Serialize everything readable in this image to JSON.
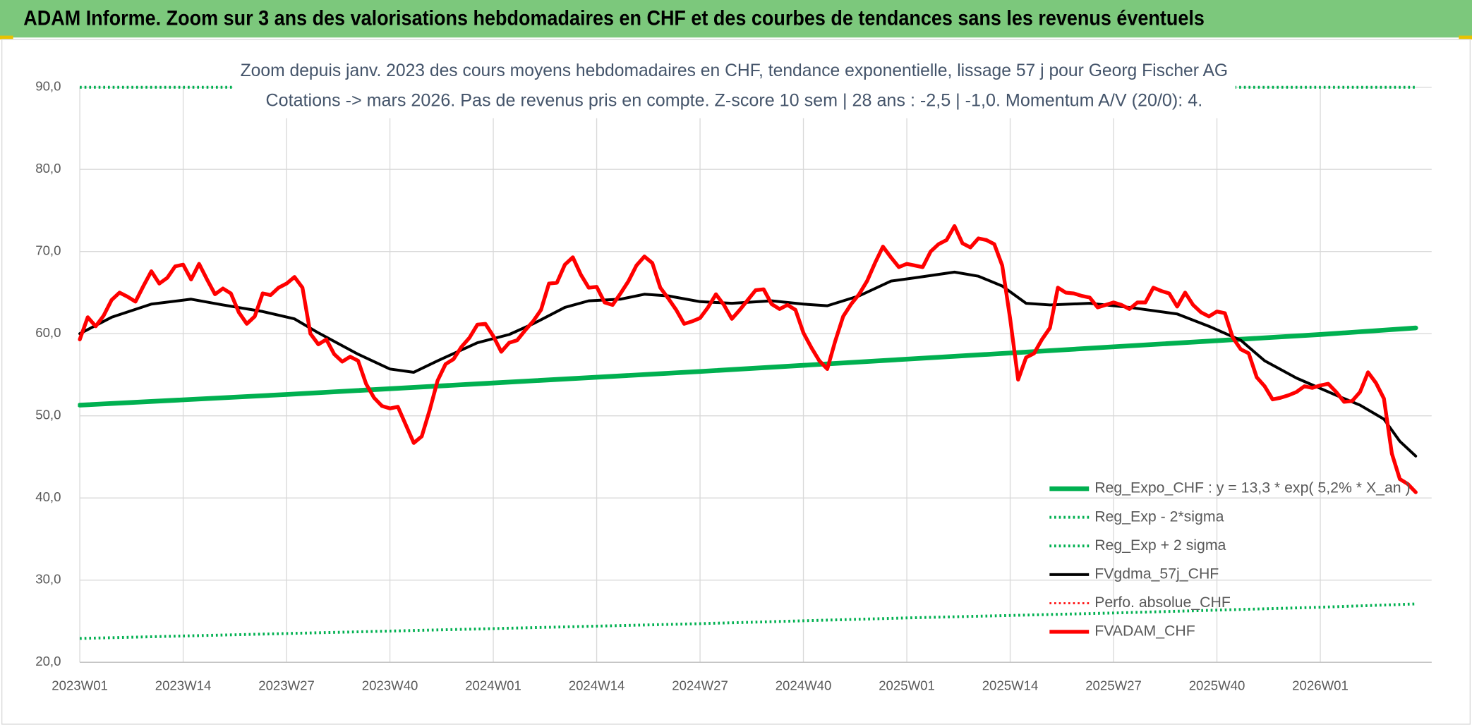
{
  "header": {
    "title": "ADAM Informe. Zoom sur 3 ans des valorisations hebdomadaires en CHF et des courbes de tendances sans les revenus éventuels"
  },
  "chart_data": {
    "type": "line",
    "title": "Zoom depuis janv. 2023 des cours moyens hebdomadaires en CHF, tendance exponentielle, lissage 57 j pour Georg Fischer AG",
    "subtitle": "Cotations -> mars 2026. Pas de revenus pris en compte. Z-score 10 sem | 28 ans : -2,5 | -1,0. Momentum A/V (20/0): 4.",
    "xlim": [
      0,
      170
    ],
    "xticks": [
      {
        "value": 0,
        "label": "2023W01"
      },
      {
        "value": 13,
        "label": "2023W14"
      },
      {
        "value": 26,
        "label": "2023W27"
      },
      {
        "value": 39,
        "label": "2023W40"
      },
      {
        "value": 52,
        "label": "2024W01"
      },
      {
        "value": 65,
        "label": "2024W14"
      },
      {
        "value": 78,
        "label": "2024W27"
      },
      {
        "value": 91,
        "label": "2024W40"
      },
      {
        "value": 104,
        "label": "2025W01"
      },
      {
        "value": 117,
        "label": "2025W14"
      },
      {
        "value": 130,
        "label": "2025W27"
      },
      {
        "value": 143,
        "label": "2025W40"
      },
      {
        "value": 156,
        "label": "2026W01"
      }
    ],
    "ylim": [
      20,
      90
    ],
    "yticks": [
      {
        "value": 20,
        "label": "20,0"
      },
      {
        "value": 30,
        "label": "30,0"
      },
      {
        "value": 40,
        "label": "40,0"
      },
      {
        "value": 50,
        "label": "50,0"
      },
      {
        "value": 60,
        "label": "60,0"
      },
      {
        "value": 70,
        "label": "70,0"
      },
      {
        "value": 80,
        "label": "80,0"
      },
      {
        "value": 90,
        "label": "90,0"
      }
    ],
    "grid": true,
    "legend": "bottom-right",
    "series": [
      {
        "name": "Reg_Expo_CHF : y = 13,3 * exp( 5,2% *  X_an )",
        "color": "#00b050",
        "width": 5,
        "dash": false,
        "x": [
          0,
          26,
          52,
          78,
          104,
          130,
          156,
          168
        ],
        "values": [
          51.3,
          52.6,
          54.0,
          55.4,
          56.9,
          58.4,
          59.9,
          60.7
        ]
      },
      {
        "name": "Reg_Exp - 2*sigma",
        "color": "#00b050",
        "width": 3,
        "dash": true,
        "x": [
          0,
          26,
          52,
          78,
          104,
          130,
          156,
          168
        ],
        "values": [
          22.9,
          23.5,
          24.1,
          24.7,
          25.4,
          26.0,
          26.7,
          27.1
        ]
      },
      {
        "name": "Reg_Exp + 2 sigma",
        "color": "#00b050",
        "width": 3,
        "dash": true,
        "x": [
          0,
          168
        ],
        "values": [
          90,
          90
        ]
      },
      {
        "name": "FVgdma_57j_CHF",
        "color": "#000000",
        "width": 3,
        "dash": false,
        "x": [
          0,
          4,
          9,
          14,
          18,
          23,
          27,
          30,
          35,
          39,
          42,
          45,
          50,
          54,
          57,
          61,
          64,
          68,
          71,
          74,
          78,
          82,
          87,
          91,
          94,
          98,
          102,
          105,
          110,
          113,
          116,
          119,
          122,
          127,
          132,
          138,
          142,
          146,
          149,
          153,
          158,
          161,
          164,
          166,
          168
        ],
        "values": [
          60.0,
          62.0,
          63.6,
          64.2,
          63.5,
          62.7,
          61.8,
          60.1,
          57.5,
          55.7,
          55.3,
          56.7,
          58.9,
          59.9,
          61.2,
          63.2,
          64.0,
          64.2,
          64.8,
          64.6,
          63.9,
          63.7,
          64.0,
          63.6,
          63.4,
          64.6,
          66.4,
          66.8,
          67.5,
          67.0,
          65.8,
          63.7,
          63.5,
          63.7,
          63.2,
          62.4,
          60.9,
          59.2,
          56.7,
          54.6,
          52.5,
          51.3,
          49.6,
          46.9,
          45.1
        ]
      },
      {
        "name": "Perfo. absolue_CHF",
        "color": "#ff0000",
        "width": 2,
        "dash": true,
        "x": [],
        "values": []
      },
      {
        "name": "FVADAM_CHF",
        "color": "#ff0000",
        "width": 4,
        "dash": false,
        "x": [
          0,
          1,
          2,
          3,
          4,
          5,
          6,
          7,
          8,
          9,
          10,
          11,
          12,
          13,
          14,
          15,
          16,
          17,
          18,
          19,
          20,
          21,
          22,
          23,
          24,
          25,
          26,
          27,
          28,
          29,
          30,
          31,
          32,
          33,
          34,
          35,
          36,
          37,
          38,
          39,
          40,
          41,
          42,
          43,
          44,
          45,
          46,
          47,
          48,
          49,
          50,
          51,
          52,
          53,
          54,
          55,
          56,
          57,
          58,
          59,
          60,
          61,
          62,
          63,
          64,
          65,
          66,
          67,
          68,
          69,
          70,
          71,
          72,
          73,
          74,
          75,
          76,
          77,
          78,
          79,
          80,
          81,
          82,
          83,
          84,
          85,
          86,
          87,
          88,
          89,
          90,
          91,
          92,
          93,
          94,
          95,
          96,
          97,
          98,
          99,
          100,
          101,
          102,
          103,
          104,
          105,
          106,
          107,
          108,
          109,
          110,
          111,
          112,
          113,
          114,
          115,
          116,
          117,
          118,
          119,
          120,
          121,
          122,
          123,
          124,
          125,
          126,
          127,
          128,
          129,
          130,
          131,
          132,
          133,
          134,
          135,
          136,
          137,
          138,
          139,
          140,
          141,
          142,
          143,
          144,
          145,
          146,
          147,
          148,
          149,
          150,
          151,
          152,
          153,
          154,
          155,
          156,
          157,
          158,
          159,
          160,
          161,
          162,
          163,
          164,
          165,
          166,
          167,
          168
        ],
        "values": [
          59.3,
          62.0,
          60.9,
          62.2,
          64.1,
          65.0,
          64.5,
          63.9,
          65.8,
          67.6,
          66.1,
          66.8,
          68.2,
          68.4,
          66.6,
          68.5,
          66.6,
          64.8,
          65.5,
          64.9,
          62.6,
          61.2,
          62.1,
          64.9,
          64.7,
          65.6,
          66.1,
          66.9,
          65.6,
          60.0,
          58.7,
          59.3,
          57.5,
          56.6,
          57.2,
          56.7,
          53.9,
          52.2,
          51.2,
          50.9,
          51.1,
          48.9,
          46.7,
          47.5,
          50.7,
          54.3,
          56.3,
          56.9,
          58.4,
          59.5,
          61.1,
          61.2,
          59.7,
          57.8,
          58.9,
          59.2,
          60.4,
          61.5,
          62.9,
          66.1,
          66.2,
          68.4,
          69.3,
          67.2,
          65.6,
          65.7,
          63.8,
          63.5,
          64.9,
          66.4,
          68.3,
          69.4,
          68.6,
          65.6,
          64.3,
          62.9,
          61.2,
          61.5,
          61.9,
          63.2,
          64.8,
          63.5,
          61.8,
          62.9,
          64.1,
          65.3,
          65.4,
          63.6,
          63.0,
          63.5,
          62.9,
          60.1,
          58.3,
          56.7,
          55.7,
          59.1,
          62.1,
          63.6,
          64.8,
          66.4,
          68.6,
          70.6,
          69.3,
          68.1,
          68.5,
          68.3,
          68.1,
          70.0,
          70.9,
          71.4,
          73.1,
          71.0,
          70.5,
          71.6,
          71.4,
          70.9,
          68.3,
          61.8,
          54.4,
          57.1,
          57.6,
          59.3,
          60.7,
          65.6,
          65.0,
          64.9,
          64.6,
          64.4,
          63.2,
          63.5,
          63.8,
          63.5,
          63.0,
          63.8,
          63.8,
          65.6,
          65.2,
          64.9,
          63.3,
          65.0,
          63.5,
          62.6,
          62.1,
          62.7,
          62.5,
          59.5,
          58.1,
          57.6,
          54.7,
          53.6,
          52.0,
          52.2,
          52.5,
          52.9,
          53.6,
          53.4,
          53.7,
          53.9,
          52.9,
          51.7,
          51.8,
          52.9,
          55.3,
          54.0,
          52.1,
          45.4,
          42.3,
          41.7,
          40.7
        ]
      }
    ]
  }
}
